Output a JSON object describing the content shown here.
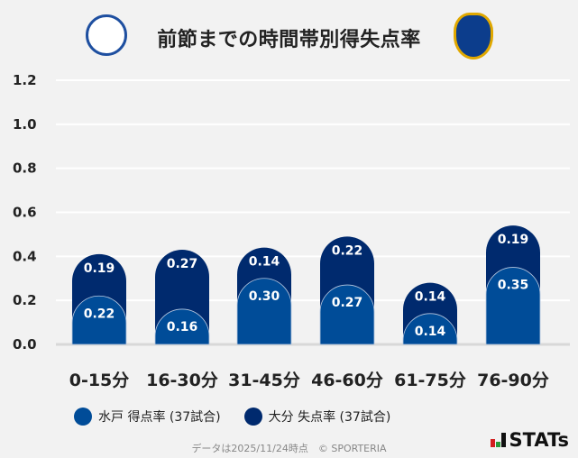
{
  "chart_data": {
    "type": "bar",
    "stacked": true,
    "title": "前節までの時間帯別得失点率",
    "categories": [
      "0-15分",
      "16-30分",
      "31-45分",
      "46-60分",
      "61-75分",
      "76-90分"
    ],
    "series": [
      {
        "name": "水戸 得点率 (37試合)",
        "values": [
          0.22,
          0.16,
          0.3,
          0.27,
          0.14,
          0.35
        ],
        "color": "#004c98"
      },
      {
        "name": "大分 失点率 (37試合)",
        "values": [
          0.19,
          0.27,
          0.14,
          0.22,
          0.14,
          0.19
        ],
        "color": "#002a6e"
      }
    ],
    "yticks": [
      "0.0",
      "0.2",
      "0.4",
      "0.6",
      "0.8",
      "1.0",
      "1.2"
    ],
    "ylim": [
      0,
      1.2
    ],
    "grid": true,
    "legend": "bottom"
  },
  "footer": "データは2025/11/24時点　© SPORTERIA",
  "brand": "STATs"
}
